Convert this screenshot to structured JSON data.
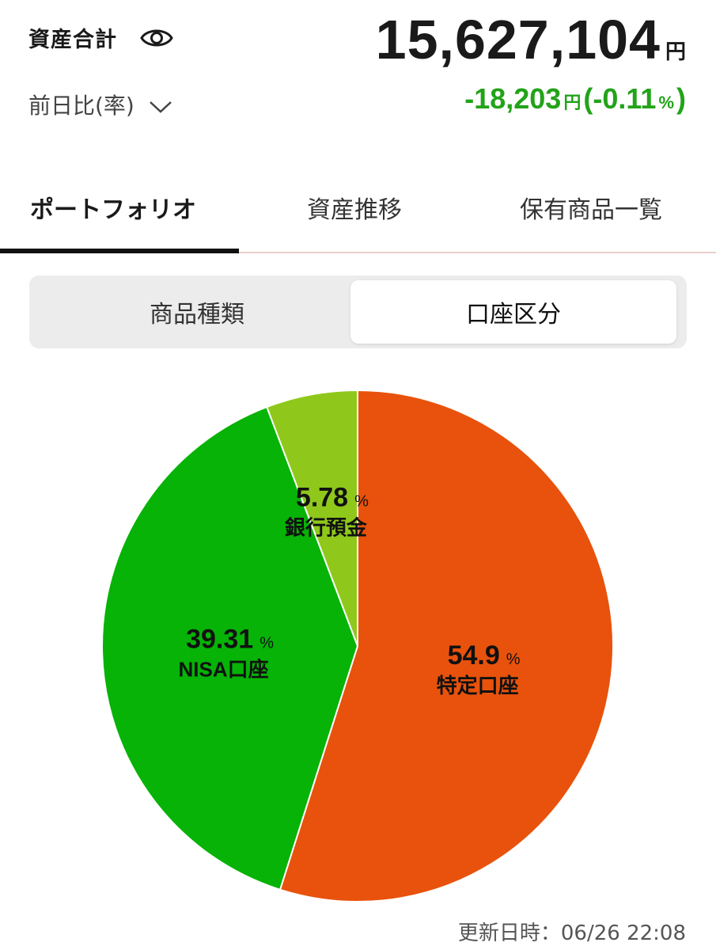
{
  "header": {
    "asset_label": "資産合計",
    "total_value": "15,627,104",
    "total_unit": "円",
    "diff_label": "前日比(率)",
    "diff_value": "-18,203",
    "diff_unit": "円",
    "diff_paren_open": "(",
    "diff_rate": "-0.11",
    "diff_rate_unit": "%",
    "diff_paren_close": ")",
    "diff_color": "#22a319"
  },
  "tabs": [
    {
      "label": "ポートフォリオ",
      "active": true
    },
    {
      "label": "資産推移",
      "active": false
    },
    {
      "label": "保有商品一覧",
      "active": false
    }
  ],
  "segment": {
    "options": [
      "商品種類",
      "口座区分"
    ],
    "selected": "口座区分"
  },
  "chart_data": {
    "type": "pie",
    "slices": [
      {
        "label": "特定口座",
        "value": 54.9,
        "display": "54.9",
        "color": "#e8520c"
      },
      {
        "label": "NISA口座",
        "value": 39.31,
        "display": "39.31",
        "color": "#06b306"
      },
      {
        "label": "銀行預金",
        "value": 5.78,
        "display": "5.78",
        "color": "#8fc81a"
      }
    ],
    "unit": "%"
  },
  "footer": {
    "updated_label": "更新日時：",
    "updated_value": "06/26 22:08"
  }
}
